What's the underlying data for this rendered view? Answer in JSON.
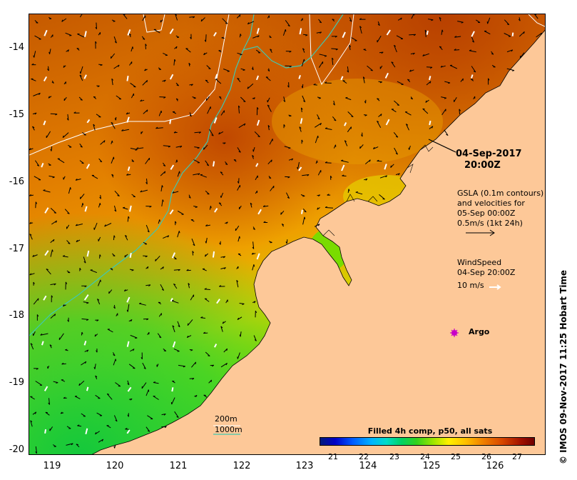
{
  "map": {
    "y_ticks": [
      "-14",
      "-15",
      "-16",
      "-17",
      "-18",
      "-19",
      "-20"
    ],
    "x_ticks": [
      "119",
      "120",
      "121",
      "122",
      "123",
      "124",
      "125",
      "126"
    ],
    "lon_range": [
      118.65,
      126.75
    ],
    "lat_range": [
      -20.08,
      -13.58
    ]
  },
  "annotations": {
    "datetime_line1": "04-Sep-2017",
    "datetime_line2": "20:00Z",
    "gsla_line1": "GSLA (0.1m contours)",
    "gsla_line2": "and velocities for",
    "gsla_line3": "05-Sep 00:00Z",
    "gsla_line4": "0.5m/s (1kt 24h)",
    "wind_line1": "WindSpeed",
    "wind_line2": "04-Sep 20:00Z",
    "wind_line3": "10 m/s",
    "argo_label": "Argo"
  },
  "legend": {
    "depth_200": "200m",
    "depth_1000": "1000m",
    "color_200": "#ffffff",
    "color_1000": "#40c8b0"
  },
  "colorbar": {
    "title": "Filled 4h comp, p50, all sats",
    "labels": [
      "21",
      "22",
      "23",
      "24",
      "25",
      "26",
      "27"
    ],
    "range": [
      20.5,
      27.9
    ]
  },
  "credit": "© IMOS 09-Nov-2017 11:25 Hobart Time",
  "colors": {
    "land": "#fdc898",
    "warm_sst": "#d26a00",
    "cool_sst": "#3cd22a",
    "argo_marker": "#c800c8"
  }
}
